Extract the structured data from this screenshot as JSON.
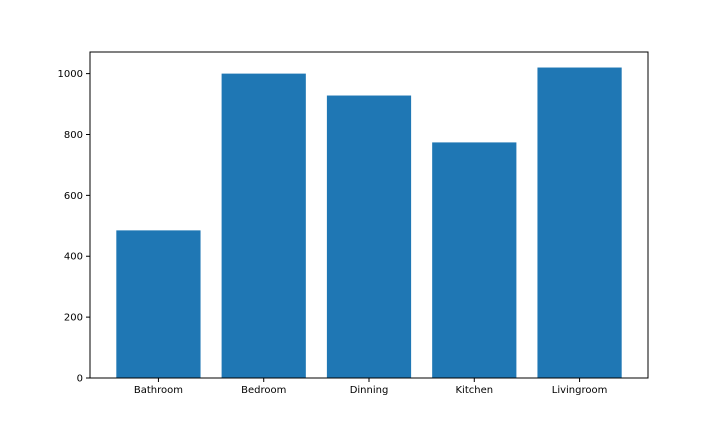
{
  "chart_data": {
    "type": "bar",
    "title": "",
    "xlabel": "",
    "ylabel": "",
    "categories": [
      "Bathroom",
      "Bedroom",
      "Dinning",
      "Kitchen",
      "Livingroom"
    ],
    "values": [
      485,
      1000,
      928,
      774,
      1020
    ],
    "ylim": [
      0,
      1071
    ],
    "yticks": [
      0,
      200,
      400,
      600,
      800,
      1000
    ],
    "bar_color": "#1f77b4",
    "grid": false,
    "legend": "none"
  }
}
